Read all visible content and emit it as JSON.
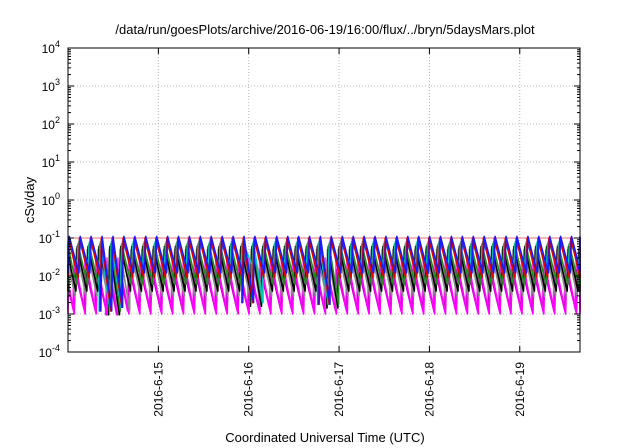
{
  "chart_data": {
    "type": "line",
    "title": "/data/run/goesPlots/archive/2016-06-19/16:00/flux/../bryn/5daysMars.plot",
    "xlabel": "Coordinated Universal Time (UTC)",
    "ylabel": "cSv/day",
    "y_scale": "log",
    "ylim": [
      0.0001,
      10000
    ],
    "y_ticks": [
      {
        "value": 0.0001,
        "base": "10",
        "exp": "-4"
      },
      {
        "value": 0.001,
        "base": "10",
        "exp": "-3"
      },
      {
        "value": 0.01,
        "base": "10",
        "exp": "-2"
      },
      {
        "value": 0.1,
        "base": "10",
        "exp": "-1"
      },
      {
        "value": 1,
        "base": "10",
        "exp": "0"
      },
      {
        "value": 10,
        "base": "10",
        "exp": "1"
      },
      {
        "value": 100,
        "base": "10",
        "exp": "2"
      },
      {
        "value": 1000,
        "base": "10",
        "exp": "3"
      },
      {
        "value": 10000,
        "base": "10",
        "exp": "4"
      }
    ],
    "xlim": [
      "2016-06-14 00:00",
      "2016-06-19 16:00"
    ],
    "x_ticks": [
      {
        "value": "2016-06-15 00:00",
        "label": "2016-6-15"
      },
      {
        "value": "2016-06-16 00:00",
        "label": "2016-6-16"
      },
      {
        "value": "2016-06-17 00:00",
        "label": "2016-6-17"
      },
      {
        "value": "2016-06-18 00:00",
        "label": "2016-6-18"
      },
      {
        "value": "2016-06-19 00:00",
        "label": "2016-6-19"
      }
    ],
    "grid": true,
    "reference_line": {
      "value": 0.1,
      "color": "#e87070"
    },
    "cycle_hours": 2.9,
    "dips": [
      {
        "time": "2016-06-14 11:00",
        "value": 0.0012
      },
      {
        "time": "2016-06-14 13:30",
        "value": 0.0015
      },
      {
        "time": "2016-06-16 01:00",
        "value": 0.002
      },
      {
        "time": "2016-06-16 21:00",
        "value": 0.0018
      }
    ],
    "series": [
      {
        "color": "#1a1aff",
        "peak": 0.11,
        "trough": 0.012
      },
      {
        "color": "#e00000",
        "peak": 0.1,
        "trough": 0.009
      },
      {
        "color": "#00c8c8",
        "peak": 0.08,
        "trough": 0.02
      },
      {
        "color": "#228b22",
        "peak": 0.07,
        "trough": 0.006
      },
      {
        "color": "#000000",
        "peak": 0.06,
        "trough": 0.004
      },
      {
        "color": "#888888",
        "peak": 0.05,
        "trough": 0.003
      },
      {
        "color": "#ff00ff",
        "peak": 0.02,
        "trough": 0.001
      },
      {
        "color": "#cc00cc",
        "peak": 0.015,
        "trough": 0.0012
      },
      {
        "color": "#ff40ff",
        "peak": 0.03,
        "trough": 0.0015
      }
    ]
  }
}
